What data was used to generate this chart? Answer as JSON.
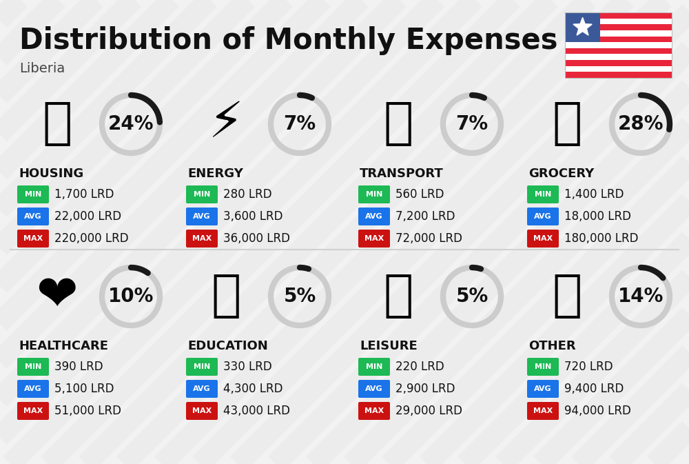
{
  "title": "Distribution of Monthly Expenses",
  "subtitle": "Liberia",
  "background_color": "#f2f2f2",
  "categories": [
    {
      "name": "HOUSING",
      "pct": 24,
      "icon": "🏙",
      "min": "1,700 LRD",
      "avg": "22,000 LRD",
      "max": "220,000 LRD",
      "col": 0,
      "row": 0
    },
    {
      "name": "ENERGY",
      "pct": 7,
      "icon": "⚡",
      "min": "280 LRD",
      "avg": "3,600 LRD",
      "max": "36,000 LRD",
      "col": 1,
      "row": 0
    },
    {
      "name": "TRANSPORT",
      "pct": 7,
      "icon": "🚌",
      "min": "560 LRD",
      "avg": "7,200 LRD",
      "max": "72,000 LRD",
      "col": 2,
      "row": 0
    },
    {
      "name": "GROCERY",
      "pct": 28,
      "icon": "🛒",
      "min": "1,400 LRD",
      "avg": "18,000 LRD",
      "max": "180,000 LRD",
      "col": 3,
      "row": 0
    },
    {
      "name": "HEALTHCARE",
      "pct": 10,
      "icon": "❤️",
      "min": "390 LRD",
      "avg": "5,100 LRD",
      "max": "51,000 LRD",
      "col": 0,
      "row": 1
    },
    {
      "name": "EDUCATION",
      "pct": 5,
      "icon": "🎓",
      "min": "330 LRD",
      "avg": "4,300 LRD",
      "max": "43,000 LRD",
      "col": 1,
      "row": 1
    },
    {
      "name": "LEISURE",
      "pct": 5,
      "icon": "🛍",
      "min": "220 LRD",
      "avg": "2,900 LRD",
      "max": "29,000 LRD",
      "col": 2,
      "row": 1
    },
    {
      "name": "OTHER",
      "pct": 14,
      "icon": "💰",
      "min": "720 LRD",
      "avg": "9,400 LRD",
      "max": "94,000 LRD",
      "col": 3,
      "row": 1
    }
  ],
  "color_min": "#1db954",
  "color_avg": "#1a73e8",
  "color_max": "#cc1111",
  "arc_color_dark": "#1a1a1a",
  "arc_color_light": "#cccccc",
  "stripe_color": "#e8e8e8",
  "divider_color": "#d0d0d0",
  "title_fontsize": 30,
  "subtitle_fontsize": 14,
  "cat_fontsize": 13,
  "pct_fontsize": 20,
  "value_fontsize": 12,
  "badge_fontsize": 8
}
